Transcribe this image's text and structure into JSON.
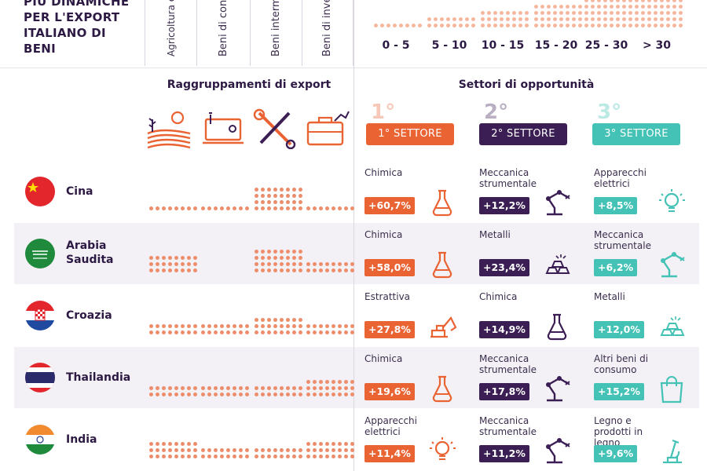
{
  "header": {
    "title": "PIÙ DINAMICHE PER L'EXPORT ITALIANO DI BENI",
    "columns": [
      "Agricoltura e altri alimenti",
      "Beni di consumo",
      "Beni intermedi",
      "Beni di investimento"
    ],
    "legend": [
      "0 - 5",
      "5 - 10",
      "10 - 15",
      "15 - 20",
      "25 - 30",
      "> 30"
    ]
  },
  "sections": {
    "left": "Raggruppamenti di export",
    "right": "Settori di opportunità"
  },
  "badges": [
    {
      "label": "1° SETTORE",
      "num": "1°",
      "color": "#ea6333"
    },
    {
      "label": "2° SETTORE",
      "num": "2°",
      "color": "#3b1e54"
    },
    {
      "label": "3° SETTORE",
      "num": "3°",
      "color": "#43c2b5"
    }
  ],
  "icons": {
    "groups": [
      "agriculture-icon",
      "monitor-icon",
      "tools-icon",
      "briefcase-chart-icon"
    ]
  },
  "countries": [
    {
      "name": "Cina",
      "flag": "china",
      "dots": [
        1,
        1,
        4,
        1
      ],
      "s1": {
        "name": "Chimica",
        "value": "+60,7%",
        "icon": "flask-icon"
      },
      "s2": {
        "name": "Meccanica strumentale",
        "value": "+12,2%",
        "icon": "robot-arm-icon"
      },
      "s3": {
        "name": "Apparecchi elettrici",
        "value": "+8,5%",
        "icon": "bulb-icon"
      }
    },
    {
      "name": "Arabia Saudita",
      "flag": "saudi",
      "dots": [
        3,
        0,
        4,
        2
      ],
      "s1": {
        "name": "Chimica",
        "value": "+58,0%",
        "icon": "flask-icon"
      },
      "s2": {
        "name": "Metalli",
        "value": "+23,4%",
        "icon": "ingots-icon"
      },
      "s3": {
        "name": "Meccanica strumentale",
        "value": "+6,2%",
        "icon": "robot-arm-icon"
      }
    },
    {
      "name": "Croazia",
      "flag": "croatia",
      "dots": [
        2,
        2,
        3,
        2
      ],
      "s1": {
        "name": "Estrattiva",
        "value": "+27,8%",
        "icon": "excavator-icon"
      },
      "s2": {
        "name": "Chimica",
        "value": "+14,9%",
        "icon": "flask-icon"
      },
      "s3": {
        "name": "Metalli",
        "value": "+12,0%",
        "icon": "ingots-icon"
      }
    },
    {
      "name": "Thailandia",
      "flag": "thailand",
      "dots": [
        2,
        2,
        2,
        3
      ],
      "s1": {
        "name": "Chimica",
        "value": "+19,6%",
        "icon": "flask-icon"
      },
      "s2": {
        "name": "Meccanica strumentale",
        "value": "+17,8%",
        "icon": "robot-arm-icon"
      },
      "s3": {
        "name": "Altri beni di consumo",
        "value": "+15,2%",
        "icon": "shopping-bag-icon"
      }
    },
    {
      "name": "India",
      "flag": "india",
      "dots": [
        3,
        2,
        2,
        3
      ],
      "s1": {
        "name": "Apparecchi elettrici",
        "value": "+11,4%",
        "icon": "bulb-icon"
      },
      "s2": {
        "name": "Meccanica strumentale",
        "value": "+11,2%",
        "icon": "robot-arm-icon"
      },
      "s3": {
        "name": "Legno e prodotti in legno",
        "value": "+9,6%",
        "icon": "microscope-icon"
      }
    }
  ]
}
